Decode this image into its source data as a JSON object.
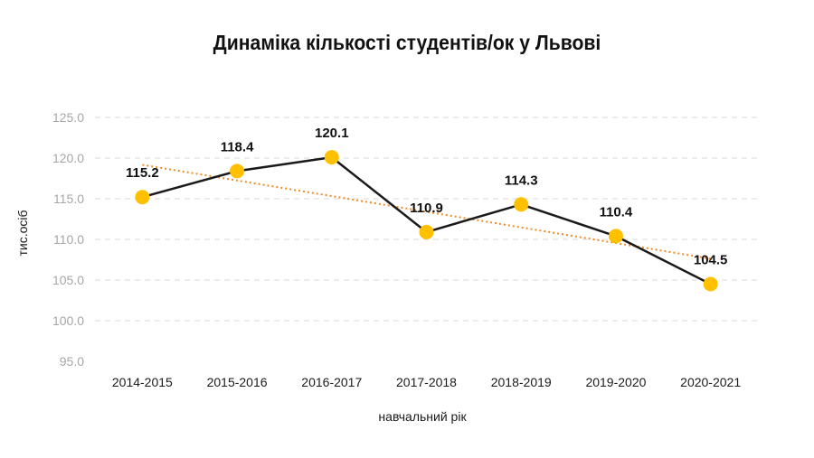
{
  "chart_data": {
    "type": "line",
    "title": "Динаміка кількості студентів/ок у Львові",
    "xlabel": "навчальний рік",
    "ylabel": "тис.осіб",
    "categories": [
      "2014-2015",
      "2015-2016",
      "2016-2017",
      "2017-2018",
      "2018-2019",
      "2019-2020",
      "2020-2021"
    ],
    "series": [
      {
        "values": [
          115.2,
          118.4,
          120.1,
          110.9,
          114.3,
          110.4,
          104.5
        ],
        "color": "#1a1a1a",
        "marker_color": "#ffc000"
      }
    ],
    "data_labels": [
      "115.2",
      "118.4",
      "120.1",
      "110.9",
      "114.3",
      "110.4",
      "104.5"
    ],
    "trendline": {
      "type": "linear",
      "color": "#f08a24",
      "style": "dotted"
    },
    "ylim": [
      95.0,
      125.0
    ],
    "yticks": [
      "95.0",
      "100.0",
      "105.0",
      "110.0",
      "115.0",
      "120.0",
      "125.0"
    ],
    "grid": true,
    "legend": "none"
  }
}
